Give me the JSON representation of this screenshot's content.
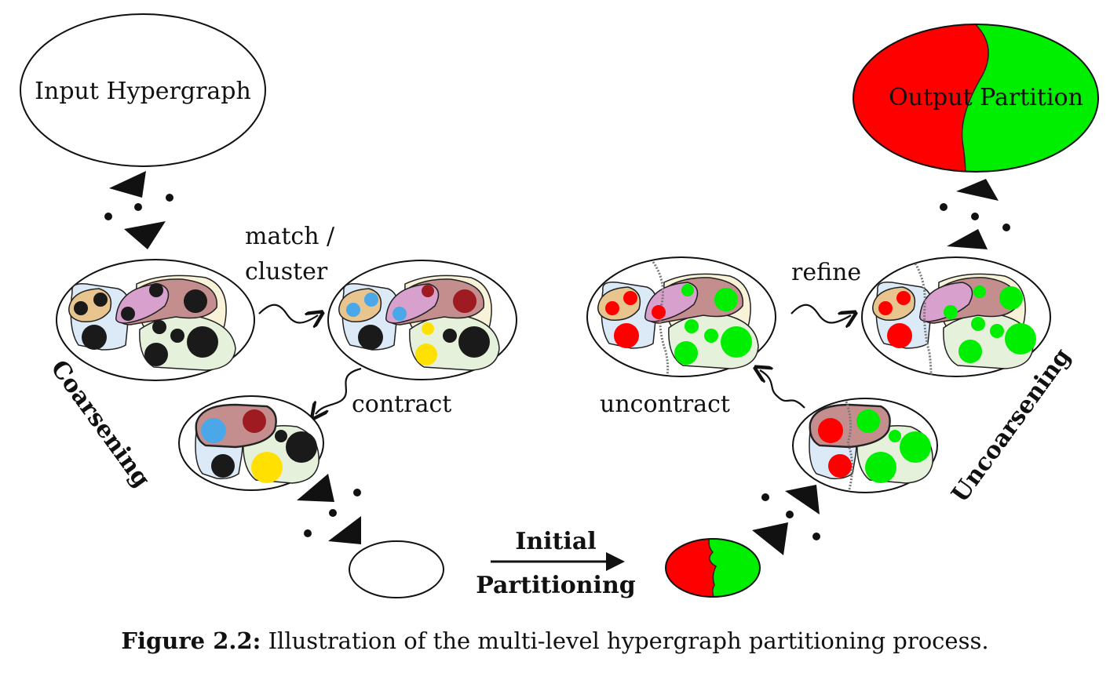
{
  "labels": {
    "input": "Input Hypergraph",
    "output": "Output Partition",
    "match_line1": "match /",
    "match_line2": "cluster",
    "contract": "contract",
    "uncontract": "uncontract",
    "refine": "refine",
    "initial_line1": "Initial",
    "initial_line2": "Partitioning",
    "coarsening": "Coarsening",
    "uncoarsening": "Uncoarsening"
  },
  "caption": {
    "prefix": "Figure 2.2:",
    "text": "Illustration of the multi-level hypergraph partitioning process."
  },
  "colors": {
    "red": "#ff0000",
    "green": "#00ee00",
    "blue": "#4aa8e8",
    "yellow": "#ffe000",
    "darkred": "#9e1b22",
    "black": "#1a1a1a",
    "edge_tan": "#e8c48e",
    "edge_pink": "#d8a0cc",
    "edge_rose": "#c48e8e",
    "edge_lightblue": "#dce9f6",
    "edge_cream": "#f8f3d8",
    "edge_lightgreen": "#e6f1dc"
  }
}
